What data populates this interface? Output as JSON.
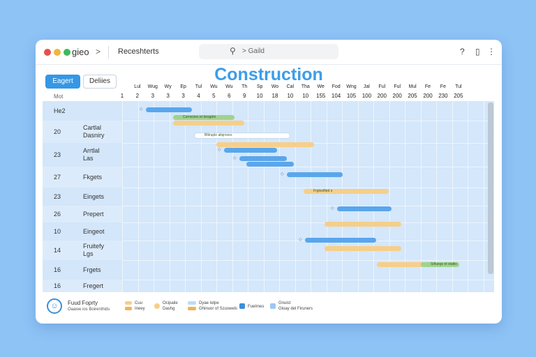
{
  "window": {
    "app_name": "gieo",
    "breadcrumb_chevron": ">",
    "breadcrumb": "Receshterts",
    "search_icon": "search-icon",
    "search_text": "> Gaild",
    "toolbar_icons": [
      {
        "name": "help-icon",
        "glyph": "?"
      },
      {
        "name": "notification-icon",
        "glyph": "▯"
      },
      {
        "name": "more-icon",
        "glyph": "⋮"
      }
    ],
    "dots": [
      "#e8504a",
      "#f1b53a",
      "#3fb95c"
    ]
  },
  "title": "Construction",
  "buttons": {
    "primary": "Eagert",
    "secondary": "Deliies"
  },
  "header_label": "Mot",
  "timeline": {
    "top": [
      "Lul",
      "Wug",
      "Wy",
      "Ep",
      "Tul",
      "Wu",
      "Wu",
      "Th",
      "Sp",
      "Wo",
      "Cal",
      "Tha",
      "We",
      "Fod",
      "Wng",
      "Jal",
      "Ful",
      "Ful",
      "Mul",
      "Fe",
      "Fe",
      "Tul"
    ],
    "numbers": [
      "1",
      "2",
      "3",
      "3",
      "3",
      "4",
      "5",
      "6",
      "9",
      "10",
      "18",
      "10",
      "10",
      "155",
      "104",
      "105",
      "100",
      "200",
      "200",
      "205",
      "200",
      "230",
      "205"
    ]
  },
  "rows": [
    {
      "num": "",
      "name": "He2"
    },
    {
      "num": "20",
      "name": "Cartlal\nDasniry"
    },
    {
      "num": "23",
      "name": "Arrtlal\nLas"
    },
    {
      "num": "27",
      "name": "Fkgets"
    },
    {
      "num": "23",
      "name": "Eingets"
    },
    {
      "num": "26",
      "name": "Prepert"
    },
    {
      "num": "10",
      "name": "Eingeot"
    },
    {
      "num": "14",
      "name": "Fruitefy\nLgs"
    },
    {
      "num": "16",
      "name": "Frgets"
    },
    {
      "num": "16",
      "name": "Fregert"
    }
  ],
  "bar_labels": {
    "row1a": "Cornecies et desgdm",
    "row2a": "Bltiruple aliqroves",
    "row5a": "Frglostfied s",
    "row9b": "Srlluegs et stalks"
  },
  "legend": {
    "icon": "worker-icon",
    "title": "Fuud Foprty",
    "subtitle": "Oaaioe ios Boirenthids",
    "items": [
      {
        "a": "Cuu",
        "b": "Ineey"
      },
      {
        "a": "Ocipaile",
        "b": "Dashg"
      },
      {
        "a": "Dyae Ielpe",
        "b": "Ghinuor of Szuswels"
      },
      {
        "a": "Fuelrnes"
      },
      {
        "a": "Gnuist",
        "b": "Gloay del Firuners"
      }
    ]
  },
  "colors": {
    "accent": "#3d9de8",
    "bar_blue": "#5aa6ec",
    "bar_orange": "#f5cf8a",
    "bar_green": "#9fd38f",
    "bar_white": "#ffffff"
  }
}
